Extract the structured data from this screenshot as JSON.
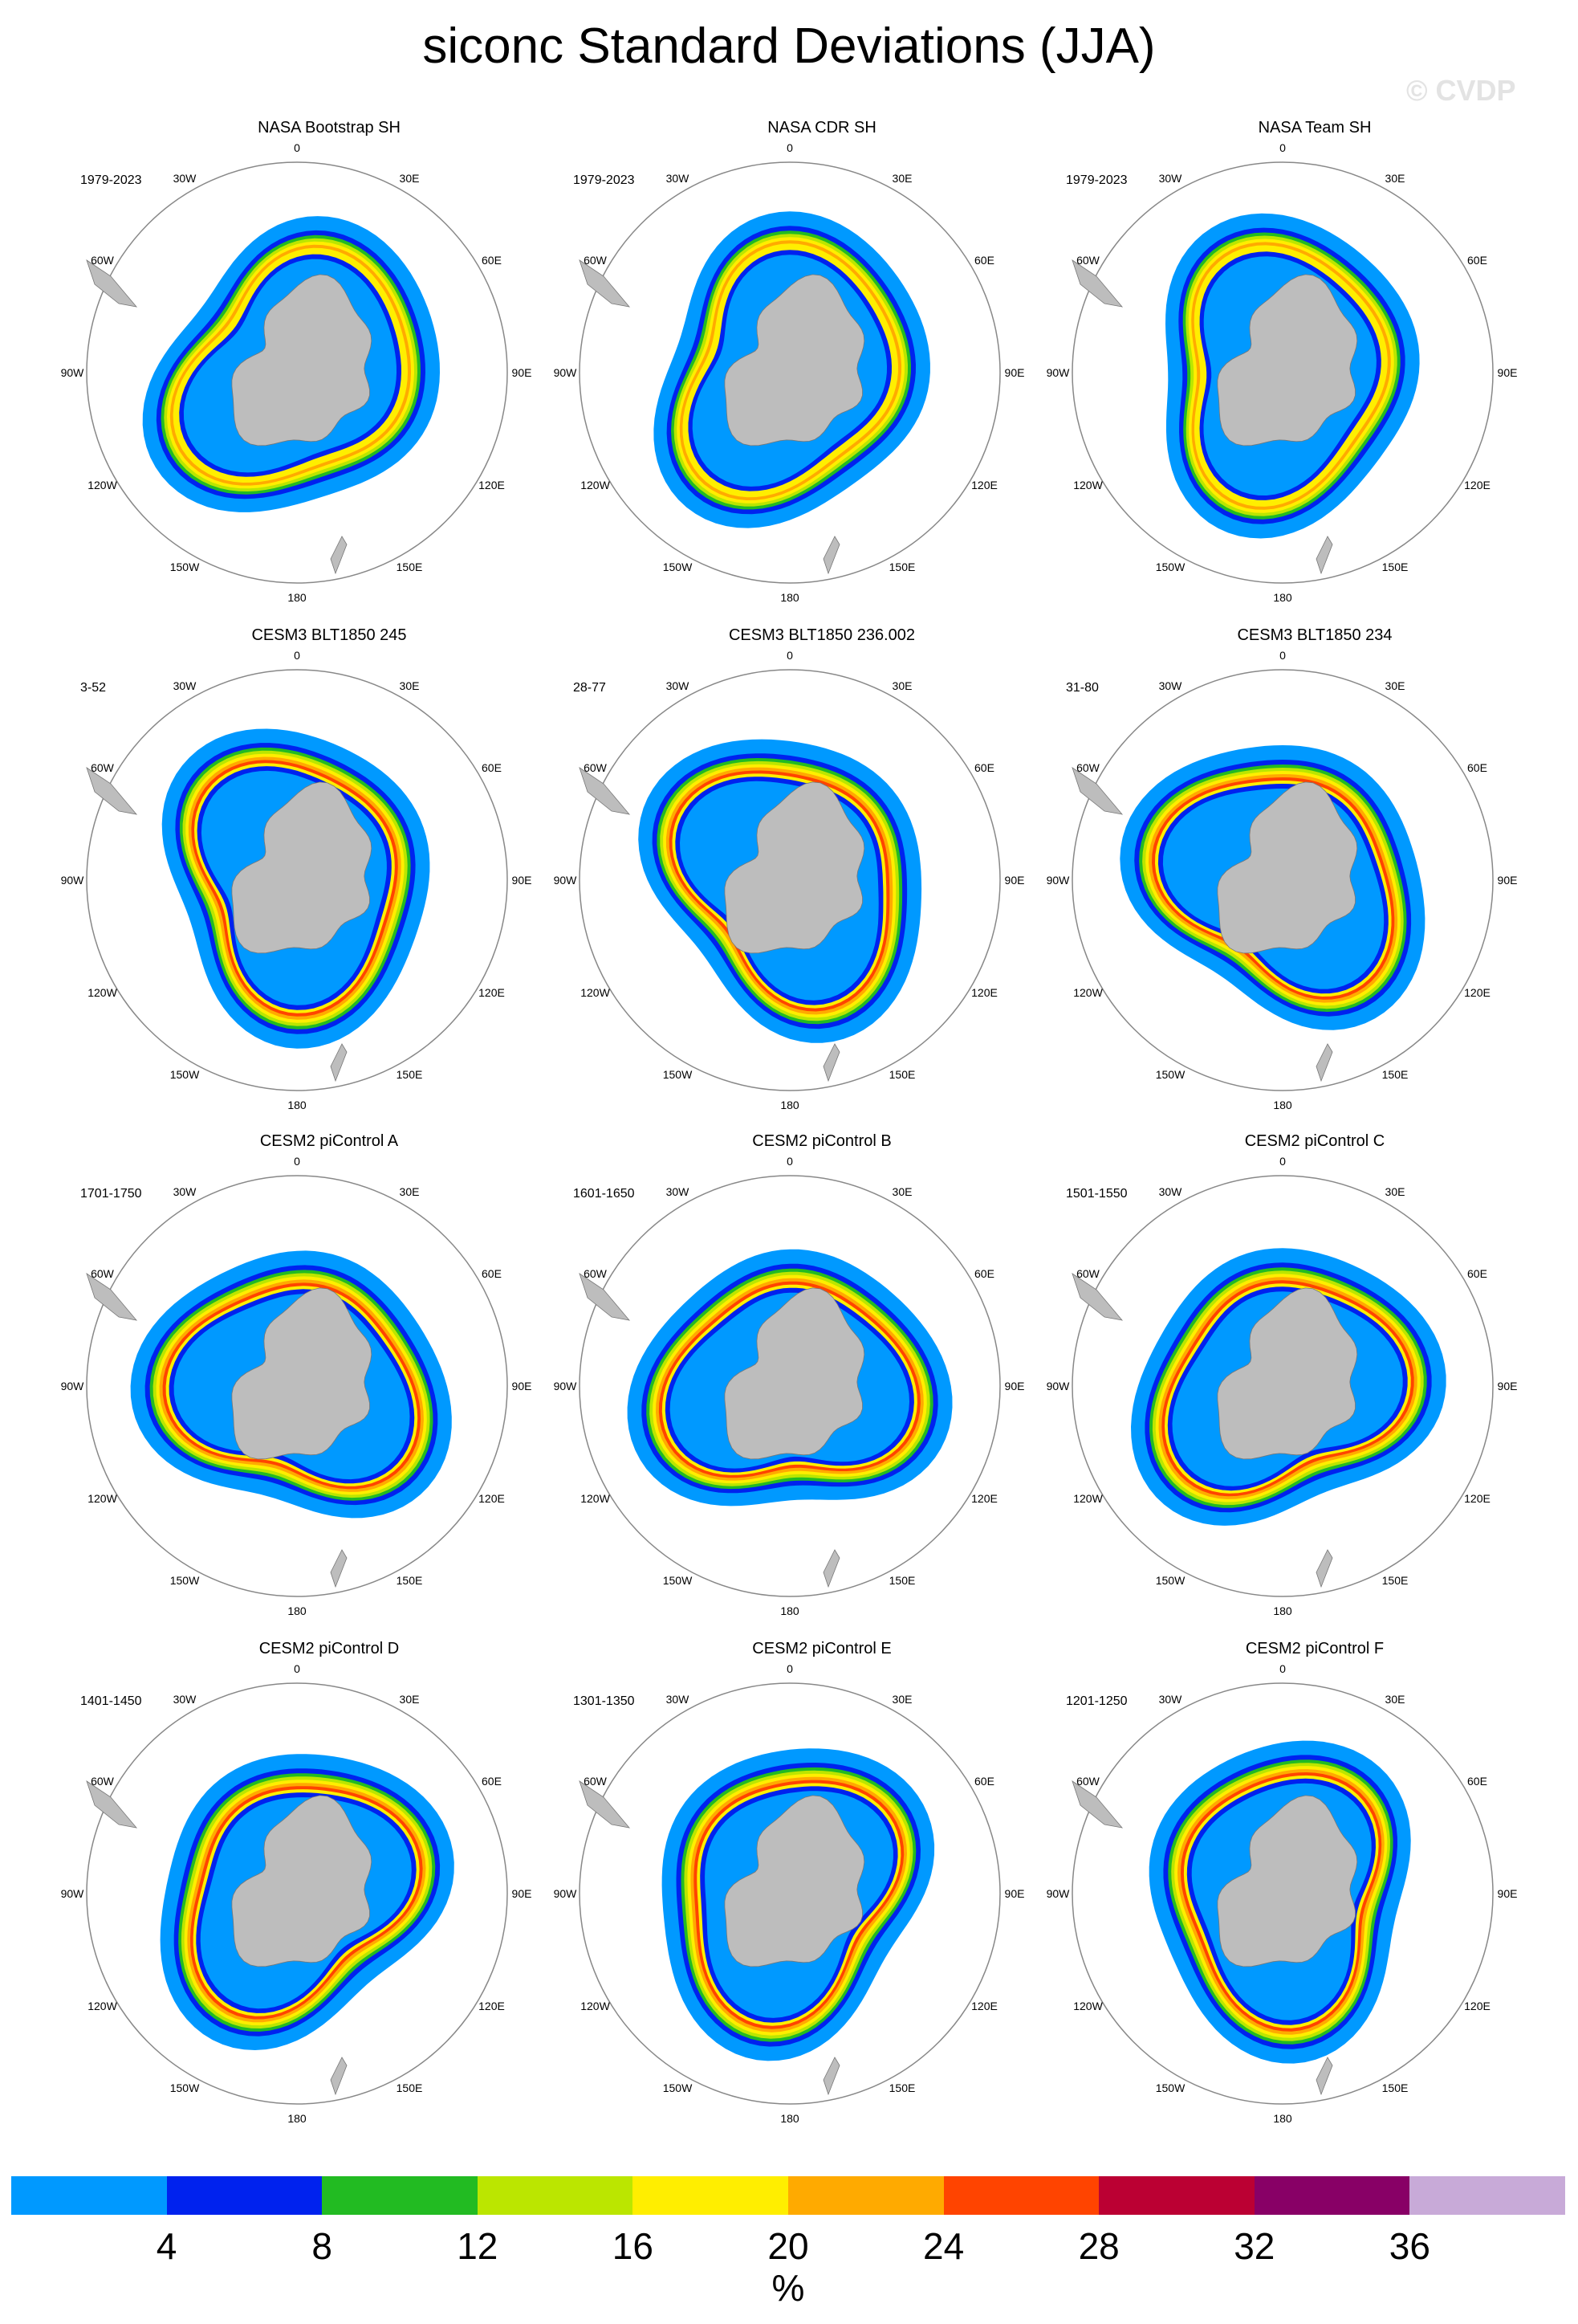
{
  "title": "siconc Standard Deviations (JJA)",
  "watermark": "© CVDP",
  "longitude_labels": [
    "0",
    "30E",
    "60E",
    "90E",
    "120E",
    "150E",
    "180",
    "150W",
    "120W",
    "90W",
    "60W",
    "30W"
  ],
  "panels": [
    {
      "title": "NASA Bootstrap SH",
      "period": "1979-2023"
    },
    {
      "title": "NASA CDR SH",
      "period": "1979-2023"
    },
    {
      "title": "NASA Team SH",
      "period": "1979-2023"
    },
    {
      "title": "CESM3 BLT1850 245",
      "period": "3-52"
    },
    {
      "title": "CESM3 BLT1850 236.002",
      "period": "28-77"
    },
    {
      "title": "CESM3 BLT1850 234",
      "period": "31-80"
    },
    {
      "title": "CESM2 piControl A",
      "period": "1701-1750"
    },
    {
      "title": "CESM2 piControl B",
      "period": "1601-1650"
    },
    {
      "title": "CESM2 piControl C",
      "period": "1501-1550"
    },
    {
      "title": "CESM2 piControl D",
      "period": "1401-1450"
    },
    {
      "title": "CESM2 piControl E",
      "period": "1301-1350"
    },
    {
      "title": "CESM2 piControl F",
      "period": "1201-1250"
    }
  ],
  "colorbar": {
    "colors": [
      "#0099ff",
      "#0022ee",
      "#22bb22",
      "#bbe600",
      "#ffee00",
      "#ffaa00",
      "#ff4400",
      "#bb0033",
      "#880066",
      "#c8aad8"
    ],
    "labels": [
      "4",
      "8",
      "12",
      "16",
      "20",
      "24",
      "28",
      "32",
      "36"
    ],
    "units": "%"
  },
  "land_color": "#bdbdbd"
}
